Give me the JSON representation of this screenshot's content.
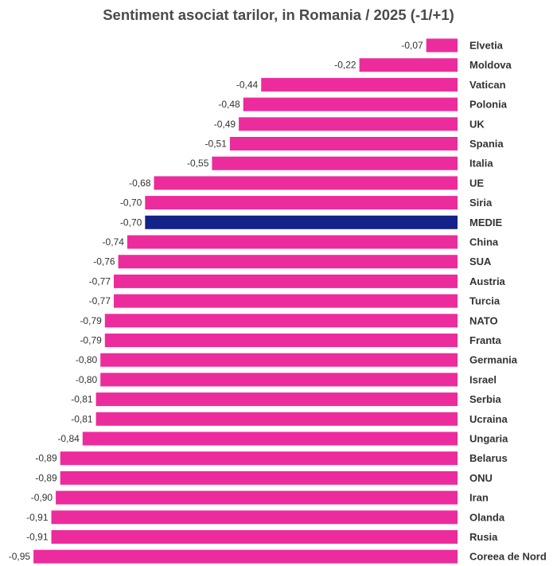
{
  "chart_data": {
    "type": "bar",
    "orientation": "horizontal",
    "title": "Sentiment asociat tarilor, in Romania / 2025 (-1/+1)",
    "xlabel": "",
    "ylabel": "",
    "xlim": [
      -1,
      0
    ],
    "grid": false,
    "legend": "none",
    "categories": [
      "Elvetia",
      "Moldova",
      "Vatican",
      "Polonia",
      "UK",
      "Spania",
      "Italia",
      "UE",
      "Siria",
      "MEDIE",
      "China",
      "SUA",
      "Austria",
      "Turcia",
      "NATO",
      "Franta",
      "Germania",
      "Israel",
      "Serbia",
      "Ucraina",
      "Ungaria",
      "Belarus",
      "ONU",
      "Iran",
      "Olanda",
      "Rusia",
      "Coreea de Nord"
    ],
    "values": [
      -0.07,
      -0.22,
      -0.44,
      -0.48,
      -0.49,
      -0.51,
      -0.55,
      -0.68,
      -0.7,
      -0.7,
      -0.74,
      -0.76,
      -0.77,
      -0.77,
      -0.79,
      -0.79,
      -0.8,
      -0.8,
      -0.81,
      -0.81,
      -0.84,
      -0.89,
      -0.89,
      -0.9,
      -0.91,
      -0.91,
      -0.95
    ],
    "value_labels": [
      "-0,07",
      "-0,22",
      "-0,44",
      "-0,48",
      "-0,49",
      "-0,51",
      "-0,55",
      "-0,68",
      "-0,70",
      "-0,70",
      "-0,74",
      "-0,76",
      "-0,77",
      "-0,77",
      "-0,79",
      "-0,79",
      "-0,80",
      "-0,80",
      "-0,81",
      "-0,81",
      "-0,84",
      "-0,89",
      "-0,89",
      "-0,90",
      "-0,91",
      "-0,91",
      "-0,95"
    ],
    "colors": {
      "bar": "#ec2c9c",
      "highlight": "#13238a"
    },
    "highlight_category": "MEDIE"
  }
}
